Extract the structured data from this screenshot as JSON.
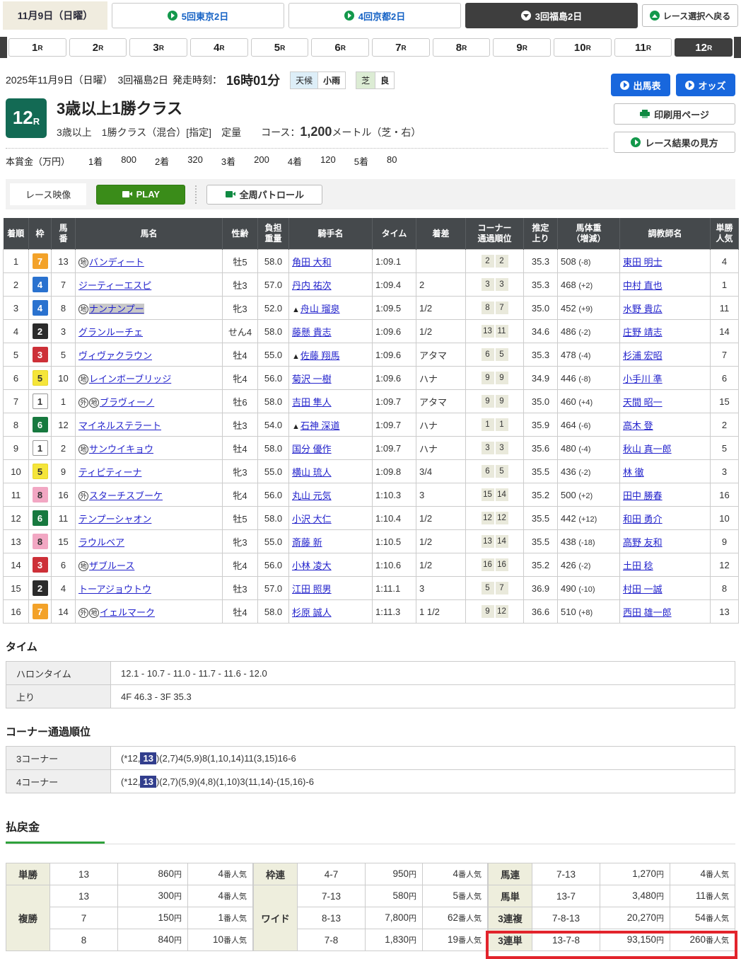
{
  "topbar": {
    "date": "11月9日（日曜）",
    "tracks": [
      {
        "label": "5回東京2日",
        "selected": false
      },
      {
        "label": "4回京都2日",
        "selected": false
      },
      {
        "label": "3回福島2日",
        "selected": true
      }
    ],
    "back_label": "レース選択へ戻る"
  },
  "race_tabs": {
    "items": [
      "1",
      "2",
      "3",
      "4",
      "5",
      "6",
      "7",
      "8",
      "9",
      "10",
      "11",
      "12"
    ],
    "suffix": "R",
    "selected_index": 11
  },
  "header": {
    "date_line": "2025年11月9日（日曜）　3回福島2日",
    "start_label": "発走時刻：",
    "start_time": "16時01分",
    "weather_label": "天候",
    "weather_value": "小雨",
    "turf_label": "芝",
    "turf_value": "良",
    "race_no": "12",
    "race_no_suffix": "R",
    "title": "3歳以上1勝クラス",
    "conditions": "3歳以上　1勝クラス（混合）[指定]　定量　　コース：",
    "course_value": "1,200",
    "course_suffix": "メートル（芝・右）",
    "prize_label": "本賞金（万円）",
    "prizes": [
      {
        "place": "1着",
        "amount": "800"
      },
      {
        "place": "2着",
        "amount": "320"
      },
      {
        "place": "3着",
        "amount": "200"
      },
      {
        "place": "4着",
        "amount": "120"
      },
      {
        "place": "5着",
        "amount": "80"
      }
    ],
    "buttons": {
      "shutsuba": "出馬表",
      "odds": "オッズ",
      "print": "印刷用ページ",
      "howto": "レース結果の見方"
    }
  },
  "video": {
    "label": "レース映像",
    "play": "PLAY",
    "patrol": "全周パトロール"
  },
  "results": {
    "headers": [
      "着順",
      "枠",
      "馬\n番",
      "馬名",
      "性齢",
      "負担\n重量",
      "騎手名",
      "タイム",
      "着差",
      "コーナー\n通過順位",
      "推定\n上り",
      "馬体重\n（増減）",
      "調教師名",
      "単勝\n人気"
    ],
    "frame_colors": {
      "1": {
        "bg": "#ffffff",
        "fg": "#333333",
        "border": "#999999"
      },
      "2": {
        "bg": "#2b2b2b",
        "fg": "#ffffff",
        "border": "#2b2b2b"
      },
      "3": {
        "bg": "#cd3038",
        "fg": "#ffffff",
        "border": "#cd3038"
      },
      "4": {
        "bg": "#2a72cf",
        "fg": "#ffffff",
        "border": "#2a72cf"
      },
      "5": {
        "bg": "#f5e53a",
        "fg": "#333333",
        "border": "#e8d828"
      },
      "6": {
        "bg": "#17793f",
        "fg": "#ffffff",
        "border": "#17793f"
      },
      "7": {
        "bg": "#f3a229",
        "fg": "#ffffff",
        "border": "#f3a229"
      },
      "8": {
        "bg": "#f2a7c3",
        "fg": "#333333",
        "border": "#f2a7c3"
      }
    },
    "rows": [
      {
        "pos": "1",
        "frame": "7",
        "num": "13",
        "marks": [
          "地"
        ],
        "name": "バンディート",
        "highlight": false,
        "sex_age": "牡5",
        "weight": "58.0",
        "jockey_prefix": "",
        "jockey": "角田 大和",
        "time": "1:09.1",
        "margin": "",
        "corners": [
          "2",
          "2"
        ],
        "last3f": "35.3",
        "body_weight": "508",
        "body_diff": "(-8)",
        "trainer": "東田 明士",
        "fav": "4"
      },
      {
        "pos": "2",
        "frame": "4",
        "num": "7",
        "marks": [],
        "name": "ジーティーエスピ",
        "highlight": false,
        "sex_age": "牡3",
        "weight": "57.0",
        "jockey_prefix": "",
        "jockey": "丹内 祐次",
        "time": "1:09.4",
        "margin": "2",
        "corners": [
          "3",
          "3"
        ],
        "last3f": "35.3",
        "body_weight": "468",
        "body_diff": "(+2)",
        "trainer": "中村 直也",
        "fav": "1"
      },
      {
        "pos": "3",
        "frame": "4",
        "num": "8",
        "marks": [
          "地"
        ],
        "name": "ナンナンプー",
        "highlight": true,
        "sex_age": "牝3",
        "weight": "52.0",
        "jockey_prefix": "▲",
        "jockey": "舟山 瑠泉",
        "time": "1:09.5",
        "margin": "1/2",
        "corners": [
          "8",
          "7"
        ],
        "last3f": "35.0",
        "body_weight": "452",
        "body_diff": "(+9)",
        "trainer": "水野 貴広",
        "fav": "11"
      },
      {
        "pos": "4",
        "frame": "2",
        "num": "3",
        "marks": [],
        "name": "グランルーチェ",
        "highlight": false,
        "sex_age": "せん4",
        "weight": "58.0",
        "jockey_prefix": "",
        "jockey": "藤懸 貴志",
        "time": "1:09.6",
        "margin": "1/2",
        "corners": [
          "13",
          "11"
        ],
        "last3f": "34.6",
        "body_weight": "486",
        "body_diff": "(-2)",
        "trainer": "庄野 靖志",
        "fav": "14"
      },
      {
        "pos": "5",
        "frame": "3",
        "num": "5",
        "marks": [],
        "name": "ヴィヴァクラウン",
        "highlight": false,
        "sex_age": "牡4",
        "weight": "55.0",
        "jockey_prefix": "▲",
        "jockey": "佐藤 翔馬",
        "time": "1:09.6",
        "margin": "アタマ",
        "corners": [
          "6",
          "5"
        ],
        "last3f": "35.3",
        "body_weight": "478",
        "body_diff": "(-4)",
        "trainer": "杉浦 宏昭",
        "fav": "7"
      },
      {
        "pos": "6",
        "frame": "5",
        "num": "10",
        "marks": [
          "地"
        ],
        "name": "レインボーブリッジ",
        "highlight": false,
        "sex_age": "牝4",
        "weight": "56.0",
        "jockey_prefix": "",
        "jockey": "菊沢 一樹",
        "time": "1:09.6",
        "margin": "ハナ",
        "corners": [
          "9",
          "9"
        ],
        "last3f": "34.9",
        "body_weight": "446",
        "body_diff": "(-8)",
        "trainer": "小手川 準",
        "fav": "6"
      },
      {
        "pos": "7",
        "frame": "1",
        "num": "1",
        "marks": [
          "外",
          "地"
        ],
        "name": "ブラヴィーノ",
        "highlight": false,
        "sex_age": "牡6",
        "weight": "58.0",
        "jockey_prefix": "",
        "jockey": "吉田 隼人",
        "time": "1:09.7",
        "margin": "アタマ",
        "corners": [
          "9",
          "9"
        ],
        "last3f": "35.0",
        "body_weight": "460",
        "body_diff": "(+4)",
        "trainer": "天間 昭一",
        "fav": "15"
      },
      {
        "pos": "8",
        "frame": "6",
        "num": "12",
        "marks": [],
        "name": "マイネルステラート",
        "highlight": false,
        "sex_age": "牡3",
        "weight": "54.0",
        "jockey_prefix": "▲",
        "jockey": "石神 深道",
        "time": "1:09.7",
        "margin": "ハナ",
        "corners": [
          "1",
          "1"
        ],
        "last3f": "35.9",
        "body_weight": "464",
        "body_diff": "(-6)",
        "trainer": "高木 登",
        "fav": "2"
      },
      {
        "pos": "9",
        "frame": "1",
        "num": "2",
        "marks": [
          "地"
        ],
        "name": "サンウイキョウ",
        "highlight": false,
        "sex_age": "牡4",
        "weight": "58.0",
        "jockey_prefix": "",
        "jockey": "国分 優作",
        "time": "1:09.7",
        "margin": "ハナ",
        "corners": [
          "3",
          "3"
        ],
        "last3f": "35.6",
        "body_weight": "480",
        "body_diff": "(-4)",
        "trainer": "秋山 真一郎",
        "fav": "5"
      },
      {
        "pos": "10",
        "frame": "5",
        "num": "9",
        "marks": [],
        "name": "ティピティーナ",
        "highlight": false,
        "sex_age": "牝3",
        "weight": "55.0",
        "jockey_prefix": "",
        "jockey": "横山 琉人",
        "time": "1:09.8",
        "margin": "3/4",
        "corners": [
          "6",
          "5"
        ],
        "last3f": "35.5",
        "body_weight": "436",
        "body_diff": "(-2)",
        "trainer": "林 徹",
        "fav": "3"
      },
      {
        "pos": "11",
        "frame": "8",
        "num": "16",
        "marks": [
          "外"
        ],
        "name": "スターチスブーケ",
        "highlight": false,
        "sex_age": "牝4",
        "weight": "56.0",
        "jockey_prefix": "",
        "jockey": "丸山 元気",
        "time": "1:10.3",
        "margin": "3",
        "corners": [
          "15",
          "14"
        ],
        "last3f": "35.2",
        "body_weight": "500",
        "body_diff": "(+2)",
        "trainer": "田中 勝春",
        "fav": "16"
      },
      {
        "pos": "12",
        "frame": "6",
        "num": "11",
        "marks": [],
        "name": "テンプーシャオン",
        "highlight": false,
        "sex_age": "牡5",
        "weight": "58.0",
        "jockey_prefix": "",
        "jockey": "小沢 大仁",
        "time": "1:10.4",
        "margin": "1/2",
        "corners": [
          "12",
          "12"
        ],
        "last3f": "35.5",
        "body_weight": "442",
        "body_diff": "(+12)",
        "trainer": "和田 勇介",
        "fav": "10"
      },
      {
        "pos": "13",
        "frame": "8",
        "num": "15",
        "marks": [],
        "name": "ラウルベア",
        "highlight": false,
        "sex_age": "牝3",
        "weight": "55.0",
        "jockey_prefix": "",
        "jockey": "斎藤 新",
        "time": "1:10.5",
        "margin": "1/2",
        "corners": [
          "13",
          "14"
        ],
        "last3f": "35.5",
        "body_weight": "438",
        "body_diff": "(-18)",
        "trainer": "高野 友和",
        "fav": "9"
      },
      {
        "pos": "14",
        "frame": "3",
        "num": "6",
        "marks": [
          "地"
        ],
        "name": "ザブルース",
        "highlight": false,
        "sex_age": "牝4",
        "weight": "56.0",
        "jockey_prefix": "",
        "jockey": "小林 凌大",
        "time": "1:10.6",
        "margin": "1/2",
        "corners": [
          "16",
          "16"
        ],
        "last3f": "35.2",
        "body_weight": "426",
        "body_diff": "(-2)",
        "trainer": "土田 稔",
        "fav": "12"
      },
      {
        "pos": "15",
        "frame": "2",
        "num": "4",
        "marks": [],
        "name": "トーアジョウトウ",
        "highlight": false,
        "sex_age": "牡3",
        "weight": "57.0",
        "jockey_prefix": "",
        "jockey": "江田 照男",
        "time": "1:11.1",
        "margin": "3",
        "corners": [
          "5",
          "7"
        ],
        "last3f": "36.9",
        "body_weight": "490",
        "body_diff": "(-10)",
        "trainer": "村田 一誠",
        "fav": "8"
      },
      {
        "pos": "16",
        "frame": "7",
        "num": "14",
        "marks": [
          "外",
          "地"
        ],
        "name": "イェルマーク",
        "highlight": false,
        "sex_age": "牡4",
        "weight": "58.0",
        "jockey_prefix": "",
        "jockey": "杉原 誠人",
        "time": "1:11.3",
        "margin": "1 1/2",
        "corners": [
          "9",
          "12"
        ],
        "last3f": "36.6",
        "body_weight": "510",
        "body_diff": "(+8)",
        "trainer": "西田 雄一郎",
        "fav": "13"
      }
    ]
  },
  "time_section": {
    "title": "タイム",
    "rows": [
      {
        "label": "ハロンタイム",
        "value": "12.1 - 10.7 - 11.0 - 11.7 - 11.6 - 12.0"
      },
      {
        "label": "上り",
        "value": "4F 46.3 - 3F 35.3"
      }
    ]
  },
  "corner_section": {
    "title": "コーナー通過順位",
    "rows": [
      {
        "label": "3コーナー",
        "pre": "(*12,",
        "hl": "13",
        "post": ")(2,7)4(5,9)8(1,10,14)11(3,15)16-6"
      },
      {
        "label": "4コーナー",
        "pre": "(*12,",
        "hl": "13",
        "post": ")(2,7)(5,9)(4,8)(1,10)3(11,14)-(15,16)-6"
      }
    ]
  },
  "payout": {
    "title": "払戻金",
    "unit": "円",
    "pop_suffix": "番人気",
    "groups_left": [
      {
        "label": "単勝",
        "rows": [
          {
            "combo": "13",
            "amount": "860",
            "pop": "4"
          }
        ]
      },
      {
        "label": "複勝",
        "rows": [
          {
            "combo": "13",
            "amount": "300",
            "pop": "4"
          },
          {
            "combo": "7",
            "amount": "150",
            "pop": "1"
          },
          {
            "combo": "8",
            "amount": "840",
            "pop": "10"
          }
        ]
      }
    ],
    "groups_mid": [
      {
        "label": "枠連",
        "rows": [
          {
            "combo": "4-7",
            "amount": "950",
            "pop": "4"
          }
        ]
      },
      {
        "label": "ワイド",
        "rows": [
          {
            "combo": "7-13",
            "amount": "580",
            "pop": "5"
          },
          {
            "combo": "8-13",
            "amount": "7,800",
            "pop": "62"
          },
          {
            "combo": "7-8",
            "amount": "1,830",
            "pop": "19"
          }
        ]
      }
    ],
    "groups_right": [
      {
        "label": "馬連",
        "rows": [
          {
            "combo": "7-13",
            "amount": "1,270",
            "pop": "4"
          }
        ]
      },
      {
        "label": "馬単",
        "rows": [
          {
            "combo": "13-7",
            "amount": "3,480",
            "pop": "11"
          }
        ]
      },
      {
        "label": "3連複",
        "rows": [
          {
            "combo": "7-8-13",
            "amount": "20,270",
            "pop": "54"
          }
        ]
      },
      {
        "label": "3連単",
        "rows": [
          {
            "combo": "13-7-8",
            "amount": "93,150",
            "pop": "260"
          }
        ],
        "highlighted": true
      }
    ]
  }
}
